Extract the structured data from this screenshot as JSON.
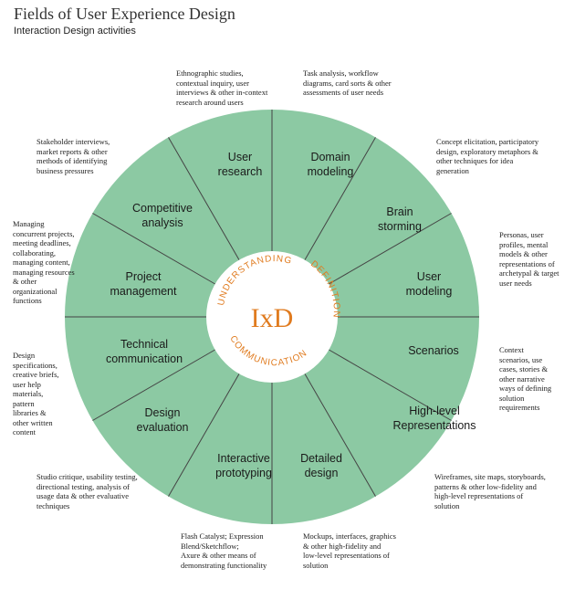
{
  "header": {
    "title": "Fields of User Experience Design",
    "subtitle": "Interaction Design activities"
  },
  "colors": {
    "wheel_fill": "#8cc9a3",
    "divider": "#444444",
    "accent": "#e07b1f",
    "center_fill": "#ffffff"
  },
  "center": {
    "label": "IxD"
  },
  "rings": {
    "understanding": "UNDERSTANDING",
    "definition": "DEFINITION",
    "communication": "COMMUNICATION"
  },
  "segments": [
    {
      "id": "user-research",
      "lines": [
        "User",
        "research"
      ]
    },
    {
      "id": "domain-modeling",
      "lines": [
        "Domain",
        "modeling"
      ]
    },
    {
      "id": "brain-storming",
      "lines": [
        "Brain",
        "storming"
      ]
    },
    {
      "id": "user-modeling",
      "lines": [
        "User",
        "modeling"
      ]
    },
    {
      "id": "scenarios",
      "lines": [
        "Scenarios"
      ]
    },
    {
      "id": "high-level-representations",
      "lines": [
        "High-level",
        "Representations"
      ]
    },
    {
      "id": "detailed-design",
      "lines": [
        "Detailed",
        "design"
      ]
    },
    {
      "id": "interactive-prototyping",
      "lines": [
        "Interactive",
        "prototyping"
      ]
    },
    {
      "id": "design-evaluation",
      "lines": [
        "Design",
        "evaluation"
      ]
    },
    {
      "id": "technical-communication",
      "lines": [
        "Technical",
        "communication"
      ]
    },
    {
      "id": "project-management",
      "lines": [
        "Project",
        "management"
      ]
    },
    {
      "id": "competitive-analysis",
      "lines": [
        "Competitive",
        "analysis"
      ]
    }
  ],
  "annotations": {
    "user_research": [
      "Ethnographic studies,",
      "contextual inquiry, user",
      "interviews & other in-context",
      "research around users"
    ],
    "domain_modeling": [
      "Task analysis, workflow",
      "diagrams, card sorts & other",
      "assessments of user needs"
    ],
    "brain_storming": [
      "Concept elicitation, participatory",
      "design, exploratory metaphors &",
      "other techniques for idea",
      "generation"
    ],
    "user_modeling": [
      "Personas, user",
      "profiles, mental",
      "models & other",
      "representations of",
      "archetypal & target",
      "user needs"
    ],
    "scenarios": [
      "Context",
      "scenarios, use",
      "cases, stories &",
      "other narrative",
      "ways of defining",
      "solution",
      "requirements"
    ],
    "high_level": [
      "Wireframes, site maps, storyboards,",
      "patterns & other low-fidelity and",
      "high-level representations of",
      "solution"
    ],
    "detailed_design": [
      "Mockups, interfaces, graphics",
      "& other high-fidelity and",
      "low-level representations of",
      "solution"
    ],
    "interactive_prototyping": [
      "Flash Catalyst; Expression",
      "Blend/Sketchflow;",
      "Axure & other means of",
      "demonstrating functionality"
    ],
    "design_evaluation": [
      "Studio critique, usability testing,",
      "directional testing, analysis of",
      "usage data & other evaluative",
      "techniques"
    ],
    "technical_communication": [
      "Design",
      "specifications,",
      "creative briefs,",
      "user help",
      "materials,",
      "pattern",
      "libraries &",
      "other written",
      "content"
    ],
    "project_management": [
      "Managing",
      "concurrent projects,",
      "meeting deadlines,",
      "collaborating,",
      "managing content,",
      "managing resources",
      "& other",
      "organizational",
      "functions"
    ],
    "competitive_analysis": [
      "Stakeholder interviews,",
      "market reports & other",
      "methods of identifying",
      "business pressures"
    ]
  }
}
